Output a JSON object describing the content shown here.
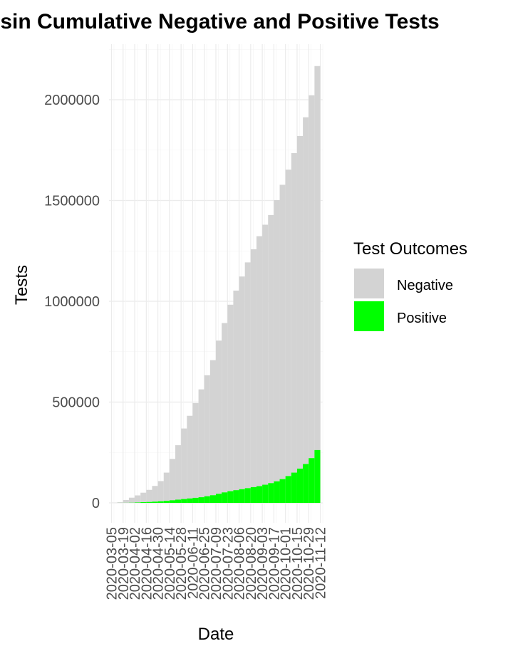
{
  "chart_data": {
    "type": "bar",
    "stacked": true,
    "title": "nsin Cumulative Negative and Positive Tests",
    "xlabel": "Date",
    "ylabel": "Tests",
    "ylim": [
      0,
      2200000
    ],
    "y_ticks": [
      "0",
      "500000",
      "1000000",
      "1500000",
      "2000000"
    ],
    "grid": true,
    "legend": {
      "title": "Test Outcomes",
      "placement": "right",
      "items": [
        {
          "label": "Negative",
          "color": "#d3d3d3"
        },
        {
          "label": "Positive",
          "color": "#00ff00"
        }
      ]
    },
    "x_tick_labels": [
      "2020-03-05",
      "2020-03-19",
      "2020-04-02",
      "2020-04-16",
      "2020-04-30",
      "2020-05-14",
      "2020-05-28",
      "2020-06-11",
      "2020-06-25",
      "2020-07-09",
      "2020-07-23",
      "2020-08-06",
      "2020-08-20",
      "2020-09-03",
      "2020-09-17",
      "2020-10-01",
      "2020-10-15",
      "2020-10-29",
      "2020-11-12"
    ],
    "x": [
      "2020-03-05",
      "2020-03-12",
      "2020-03-19",
      "2020-03-26",
      "2020-04-02",
      "2020-04-09",
      "2020-04-16",
      "2020-04-23",
      "2020-04-30",
      "2020-05-07",
      "2020-05-14",
      "2020-05-21",
      "2020-05-28",
      "2020-06-04",
      "2020-06-11",
      "2020-06-18",
      "2020-06-25",
      "2020-07-02",
      "2020-07-09",
      "2020-07-16",
      "2020-07-23",
      "2020-07-30",
      "2020-08-06",
      "2020-08-13",
      "2020-08-20",
      "2020-08-27",
      "2020-09-03",
      "2020-09-10",
      "2020-09-17",
      "2020-09-24",
      "2020-10-01",
      "2020-10-08",
      "2020-10-15",
      "2020-10-22",
      "2020-10-29",
      "2020-11-05"
    ],
    "series": [
      {
        "name": "Negative",
        "color": "#d3d3d3",
        "values": [
          500,
          3000,
          14000,
          25000,
          35000,
          47000,
          60000,
          78000,
          100000,
          140000,
          205000,
          270000,
          350000,
          410000,
          470000,
          535000,
          600000,
          670000,
          760000,
          840000,
          925000,
          990000,
          1055000,
          1120000,
          1180000,
          1240000,
          1290000,
          1330000,
          1395000,
          1460000,
          1520000,
          1585000,
          1650000,
          1720000,
          1800000,
          1905000
        ]
      },
      {
        "name": "Positive",
        "color": "#00ff00",
        "values": [
          0,
          100,
          300,
          800,
          2000,
          3500,
          4500,
          6000,
          8000,
          10000,
          13000,
          16000,
          19000,
          22000,
          25000,
          28000,
          33000,
          38000,
          45000,
          52000,
          58000,
          63000,
          68000,
          73000,
          78000,
          83000,
          90000,
          98000,
          107000,
          118000,
          133000,
          150000,
          170000,
          193000,
          222000,
          262000
        ]
      }
    ]
  }
}
